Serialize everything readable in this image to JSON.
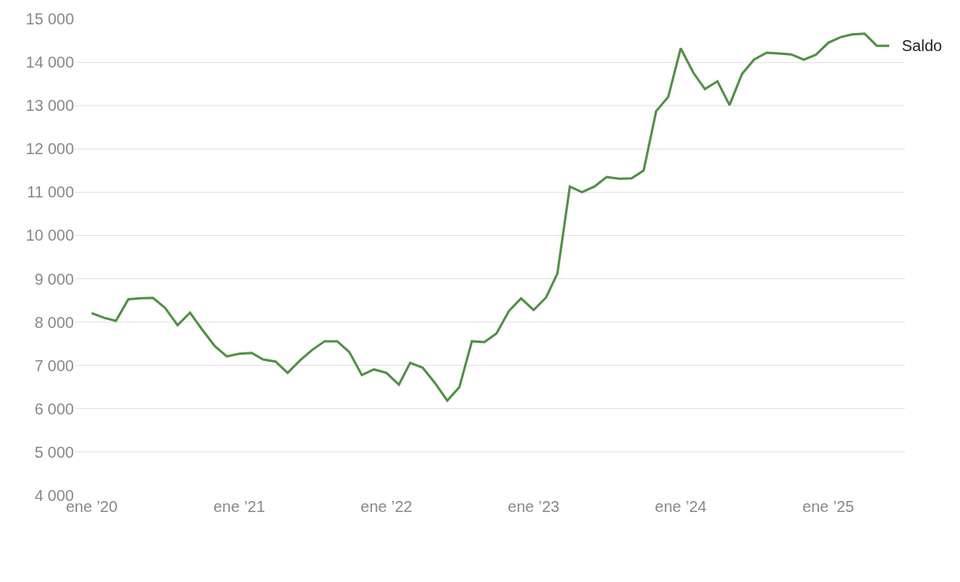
{
  "chart_data": {
    "type": "line",
    "x": [
      "2020-01",
      "2020-02",
      "2020-03",
      "2020-04",
      "2020-05",
      "2020-06",
      "2020-07",
      "2020-08",
      "2020-09",
      "2020-10",
      "2020-11",
      "2020-12",
      "2021-01",
      "2021-02",
      "2021-03",
      "2021-04",
      "2021-05",
      "2021-06",
      "2021-07",
      "2021-08",
      "2021-09",
      "2021-10",
      "2021-11",
      "2021-12",
      "2022-01",
      "2022-02",
      "2022-03",
      "2022-04",
      "2022-05",
      "2022-06",
      "2022-07",
      "2022-08",
      "2022-09",
      "2022-10",
      "2022-11",
      "2022-12",
      "2023-01",
      "2023-02",
      "2023-03",
      "2023-04",
      "2023-05",
      "2023-06",
      "2023-07",
      "2023-08",
      "2023-09",
      "2023-10",
      "2023-11",
      "2023-12",
      "2024-01",
      "2024-02",
      "2024-03",
      "2024-04",
      "2024-05",
      "2024-06",
      "2024-07",
      "2024-08",
      "2024-09",
      "2024-10",
      "2024-11",
      "2024-12",
      "2025-01",
      "2025-02",
      "2025-03",
      "2025-04",
      "2025-05",
      "2025-06"
    ],
    "series": [
      {
        "name": "Saldo",
        "color": "#4f9144",
        "values": [
          8210,
          8100,
          8030,
          8530,
          8550,
          8560,
          8330,
          7930,
          8220,
          7830,
          7450,
          7210,
          7270,
          7290,
          7140,
          7090,
          6830,
          7120,
          7360,
          7560,
          7560,
          7310,
          6780,
          6910,
          6830,
          6560,
          7060,
          6950,
          6600,
          6190,
          6500,
          7560,
          7540,
          7740,
          8260,
          8550,
          8280,
          8570,
          9120,
          11130,
          11000,
          11130,
          11350,
          11310,
          11320,
          11500,
          12870,
          13200,
          14320,
          13760,
          13380,
          13560,
          13010,
          13730,
          14060,
          14220,
          14200,
          14180,
          14060,
          14170,
          14450,
          14580,
          14640,
          14660,
          14380,
          14380
        ]
      }
    ],
    "xlim": [
      "2019-11-20",
      "2025-07-10"
    ],
    "xticks": [
      {
        "value": "2020-01-01",
        "label": "ene ’20"
      },
      {
        "value": "2021-01-01",
        "label": "ene ’21"
      },
      {
        "value": "2022-01-01",
        "label": "ene ’22"
      },
      {
        "value": "2023-01-01",
        "label": "ene ’23"
      },
      {
        "value": "2024-01-01",
        "label": "ene ’24"
      },
      {
        "value": "2025-01-01",
        "label": "ene ’25"
      }
    ],
    "ylim": [
      4000,
      15000
    ],
    "yticks": [
      {
        "value": 4000,
        "label": "4 000"
      },
      {
        "value": 5000,
        "label": "5 000"
      },
      {
        "value": 6000,
        "label": "6 000"
      },
      {
        "value": 7000,
        "label": "7 000"
      },
      {
        "value": 8000,
        "label": "8 000"
      },
      {
        "value": 9000,
        "label": "9 000"
      },
      {
        "value": 10000,
        "label": "10 000"
      },
      {
        "value": 11000,
        "label": "11 000"
      },
      {
        "value": 12000,
        "label": "12 000"
      },
      {
        "value": 13000,
        "label": "13 000"
      },
      {
        "value": 14000,
        "label": "14 000"
      },
      {
        "value": 15000,
        "label": "15 000"
      }
    ],
    "grid": "y",
    "legend": false,
    "marker": "none",
    "line_style": "solid"
  }
}
